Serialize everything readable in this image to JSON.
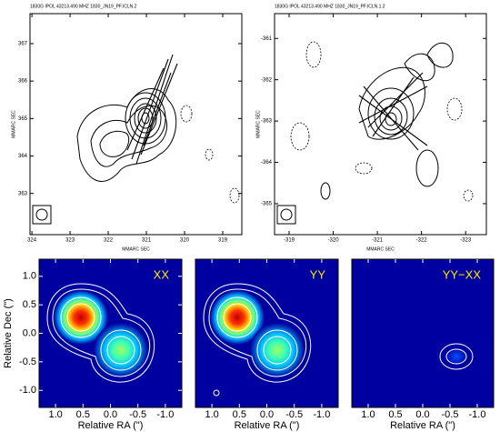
{
  "chart_data": [
    {
      "type": "contour",
      "title": "1830G    IPOL    43213.490 MHZ    1830_JN19_PF.ICLN.2",
      "xlabel": "MMARC SEC",
      "ylabel": "MMARC SEC",
      "xlim": [
        324.05,
        318.5
      ],
      "xticks": [
        324,
        323,
        322,
        321,
        320,
        319
      ],
      "ylim": [
        361.9,
        367.8
      ],
      "yticks": [
        363,
        364,
        365,
        366,
        367
      ]
    },
    {
      "type": "contour",
      "title": "1830G    IPOL    43213.490 MHZ    1830_JN19_PF.ICLN.1.2",
      "xlabel": "MMARC SEC",
      "ylabel": "MMARC SEC",
      "xlim": [
        -318.67,
        -323.47
      ],
      "xticks": [
        -319,
        -320,
        -321,
        -322,
        -323
      ],
      "ylim": [
        -365.75,
        -360.4
      ],
      "yticks": [
        -365,
        -364,
        -363,
        -362,
        -361
      ]
    },
    {
      "type": "image",
      "annotation": "XX",
      "xlabel": "Relative RA (\")",
      "ylabel": "Relative Dec (\")",
      "xlim": [
        1.3,
        -1.3
      ],
      "xticks": [
        {
          "value": 1,
          "label": "1.0"
        },
        0.5,
        {
          "value": 0,
          "label": "0.0"
        },
        -0.5,
        {
          "value": -1,
          "label": "-1.0"
        }
      ],
      "ylim": [
        -1.3,
        1.3
      ],
      "yticks": [
        {
          "value": -1,
          "label": "-1.0"
        },
        -0.5,
        {
          "value": 0,
          "label": "0.0"
        },
        0.5,
        {
          "value": 1,
          "label": "1.0"
        }
      ]
    },
    {
      "type": "image",
      "annotation": "YY",
      "xlabel": "Relative RA (\")",
      "xlim": [
        1.3,
        -1.3
      ],
      "xticks": [
        {
          "value": 1,
          "label": "1.0"
        },
        0.5,
        {
          "value": 0,
          "label": "0.0"
        },
        -0.5,
        {
          "value": -1,
          "label": "-1.0"
        }
      ],
      "ylim": [
        -1.3,
        1.3
      ]
    },
    {
      "type": "image",
      "annotation": "YY−XX",
      "xlabel": "Relative RA (\")",
      "xlim": [
        1.3,
        -1.3
      ],
      "xticks": [
        {
          "value": 1,
          "label": "1.0"
        },
        0.5,
        {
          "value": 0,
          "label": "0.0"
        },
        -0.5,
        {
          "value": -1,
          "label": "-1.0"
        }
      ],
      "ylim": [
        -1.3,
        1.3
      ]
    }
  ]
}
